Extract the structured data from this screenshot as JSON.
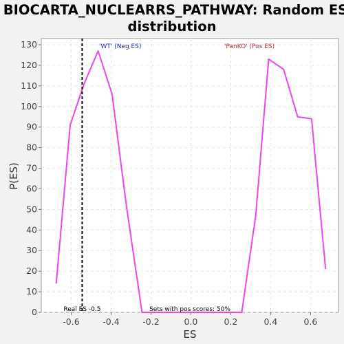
{
  "chart_data": {
    "type": "line",
    "title_line1": "BIOCARTA_NUCLEARRS_PATHWAY: Random ES",
    "title_line2": "distribution",
    "xlabel": "ES",
    "ylabel": "P(ES)",
    "xlim": [
      -0.75,
      0.74
    ],
    "ylim": [
      0,
      133
    ],
    "xticks": [
      -0.6,
      -0.4,
      -0.2,
      0.0,
      0.2,
      0.4,
      0.6
    ],
    "xtick_labels": [
      "-0.6",
      "-0.4",
      "-0.2",
      "0.0",
      "0.2",
      "0.4",
      "0.6"
    ],
    "yticks": [
      0,
      10,
      20,
      30,
      40,
      50,
      60,
      70,
      80,
      90,
      100,
      110,
      120,
      130
    ],
    "ytick_labels": [
      "0",
      "10",
      "20",
      "30",
      "40",
      "50",
      "60",
      "70",
      "80",
      "90",
      "100",
      "110",
      "120",
      "130"
    ],
    "grid": true,
    "series": [
      {
        "color": "#ee44ee",
        "points": [
          [
            -0.675,
            14
          ],
          [
            -0.605,
            91
          ],
          [
            -0.535,
            111
          ],
          [
            -0.465,
            127
          ],
          [
            -0.395,
            106
          ],
          [
            -0.325,
            53
          ],
          [
            -0.245,
            0
          ],
          [
            0.255,
            0
          ],
          [
            0.325,
            47
          ],
          [
            0.39,
            123
          ],
          [
            0.465,
            118
          ],
          [
            0.535,
            95
          ],
          [
            0.605,
            94
          ],
          [
            0.675,
            21
          ]
        ]
      }
    ],
    "real_es": {
      "x": -0.545,
      "label": "Real ES -0.5"
    },
    "annotations": {
      "neg_label": "'WT' (Neg ES)",
      "neg_color": "#2222cc",
      "pos_label": "'PanKO' (Pos ES)",
      "pos_color": "#cc2222",
      "pos_scores_label": "Sets with pos scores: 50%"
    }
  }
}
